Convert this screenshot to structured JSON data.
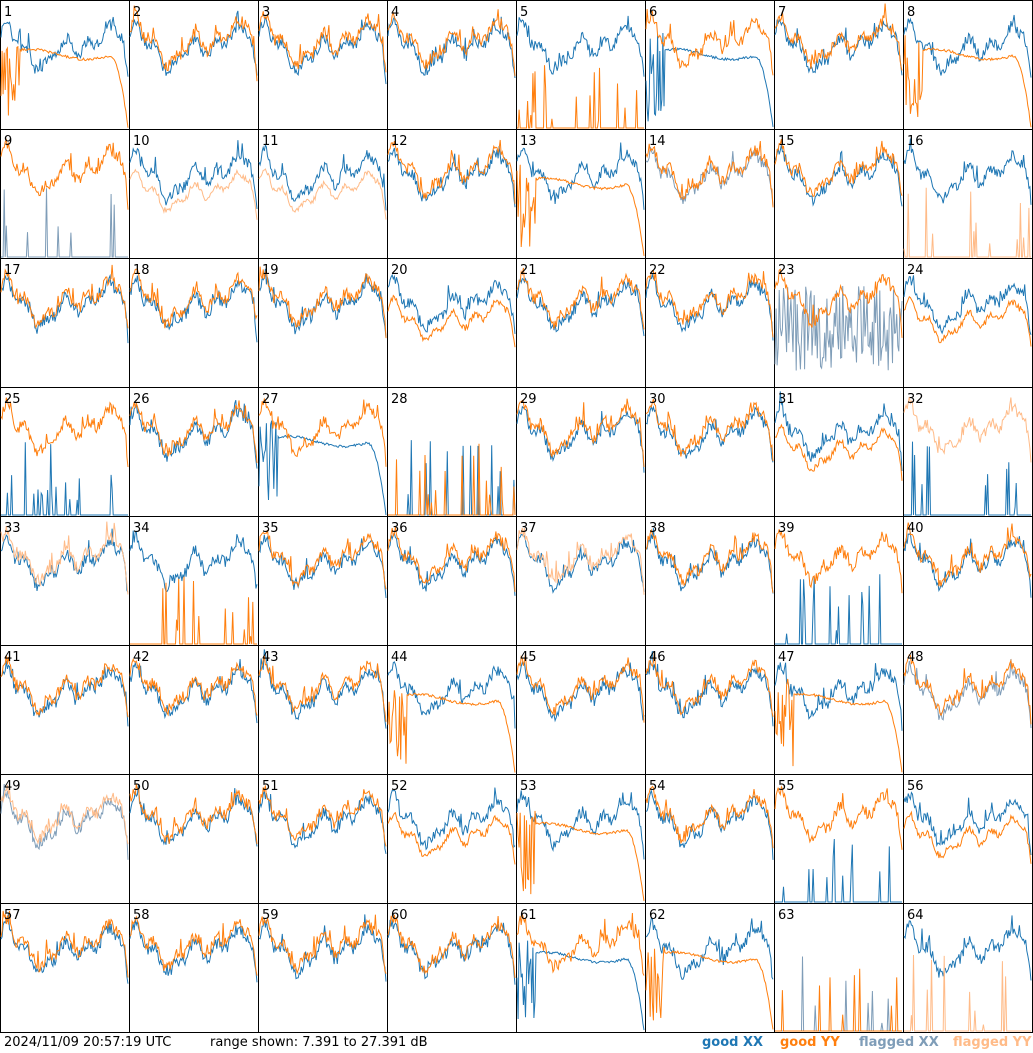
{
  "footer": {
    "timestamp": "2024/11/09 20:57:19 UTC",
    "range_text": "range shown: 7.391 to 27.391 dB",
    "legend": {
      "good_xx": "good XX",
      "good_yy": "good YY",
      "flagged_xx": "flagged XX",
      "flagged_yy": "flagged YY"
    }
  },
  "colors": {
    "good_xx": "#1f77b4",
    "good_yy": "#ff7f0e",
    "flagged_xx": "#7f9db8",
    "flagged_yy": "#ffbb88",
    "grid": "#000000",
    "background": "#ffffff"
  },
  "chart_data": {
    "type": "line",
    "layout": "8x8 grid of small multiples",
    "y_range_db": [
      7.391,
      27.391
    ],
    "x_ticks": "none",
    "y_ticks": "none",
    "grid": false,
    "legend_position": "bottom-right",
    "panels": [
      {
        "id": 1,
        "xx": "normal",
        "yy": "dropoff",
        "order": "yy"
      },
      {
        "id": 2,
        "xx": "normal",
        "yy": "normal"
      },
      {
        "id": 3,
        "xx": "normal",
        "yy": "normal"
      },
      {
        "id": 4,
        "xx": "normal",
        "yy": "normal"
      },
      {
        "id": 5,
        "xx": "normal",
        "yy": "spikes"
      },
      {
        "id": 6,
        "xx": "dropoff",
        "yy": "normal"
      },
      {
        "id": 7,
        "xx": "normal",
        "yy": "normal"
      },
      {
        "id": 8,
        "xx": "normal",
        "yy": "dropoff",
        "order": "yy"
      },
      {
        "id": 9,
        "xx": "spikes",
        "yy": "normal",
        "flagged": "xx"
      },
      {
        "id": 10,
        "xx": "normal",
        "yy": "low",
        "flagged": "yy"
      },
      {
        "id": 11,
        "xx": "normal",
        "yy": "low",
        "flagged": "yy"
      },
      {
        "id": 12,
        "xx": "normal",
        "yy": "normal"
      },
      {
        "id": 13,
        "xx": "normal",
        "yy": "dropoff",
        "order": "yy"
      },
      {
        "id": 14,
        "xx": "normal",
        "yy": "normal",
        "flagged": "xx"
      },
      {
        "id": 15,
        "xx": "normal",
        "yy": "normal"
      },
      {
        "id": 16,
        "xx": "normal",
        "yy": "spikes",
        "flagged": "yy"
      },
      {
        "id": 17,
        "xx": "normal",
        "yy": "normal"
      },
      {
        "id": 18,
        "xx": "normal",
        "yy": "normal"
      },
      {
        "id": 19,
        "xx": "normal",
        "yy": "normal"
      },
      {
        "id": 20,
        "xx": "normal",
        "yy": "low"
      },
      {
        "id": 21,
        "xx": "normal",
        "yy": "normal"
      },
      {
        "id": 22,
        "xx": "normal",
        "yy": "normal"
      },
      {
        "id": 23,
        "xx": "noise",
        "yy": "normal",
        "flagged": "xx"
      },
      {
        "id": 24,
        "xx": "normal",
        "yy": "low"
      },
      {
        "id": 25,
        "xx": "spikes",
        "yy": "normal",
        "order": "xx"
      },
      {
        "id": 26,
        "xx": "normal",
        "yy": "normal"
      },
      {
        "id": 27,
        "xx": "dropoff",
        "yy": "normal"
      },
      {
        "id": 28,
        "xx": "spikes",
        "yy": "spikes"
      },
      {
        "id": 29,
        "xx": "normal",
        "yy": "normal"
      },
      {
        "id": 30,
        "xx": "normal",
        "yy": "normal"
      },
      {
        "id": 31,
        "xx": "normal",
        "yy": "low"
      },
      {
        "id": 32,
        "xx": "spikes",
        "yy": "normal",
        "flagged": "yy"
      },
      {
        "id": 33,
        "xx": "normal",
        "yy": "normal",
        "flagged": "yy"
      },
      {
        "id": 34,
        "xx": "normal",
        "yy": "spikes"
      },
      {
        "id": 35,
        "xx": "normal",
        "yy": "normal"
      },
      {
        "id": 36,
        "xx": "normal",
        "yy": "normal"
      },
      {
        "id": 37,
        "xx": "normal",
        "yy": "normal",
        "flagged": "yy"
      },
      {
        "id": 38,
        "xx": "normal",
        "yy": "normal"
      },
      {
        "id": 39,
        "xx": "spikes",
        "yy": "normal"
      },
      {
        "id": 40,
        "xx": "normal",
        "yy": "normal"
      },
      {
        "id": 41,
        "xx": "normal",
        "yy": "normal"
      },
      {
        "id": 42,
        "xx": "normal",
        "yy": "normal"
      },
      {
        "id": 43,
        "xx": "normal",
        "yy": "normal"
      },
      {
        "id": 44,
        "xx": "normal",
        "yy": "dropoff",
        "order": "yy"
      },
      {
        "id": 45,
        "xx": "normal",
        "yy": "normal"
      },
      {
        "id": 46,
        "xx": "normal",
        "yy": "normal"
      },
      {
        "id": 47,
        "xx": "normal",
        "yy": "dropoff",
        "order": "yy"
      },
      {
        "id": 48,
        "xx": "normal",
        "yy": "normal",
        "flagged": "xx"
      },
      {
        "id": 49,
        "xx": "normal",
        "yy": "normal",
        "flagged": "both"
      },
      {
        "id": 50,
        "xx": "normal",
        "yy": "normal"
      },
      {
        "id": 51,
        "xx": "normal",
        "yy": "normal"
      },
      {
        "id": 52,
        "xx": "normal",
        "yy": "low"
      },
      {
        "id": 53,
        "xx": "normal",
        "yy": "dropoff",
        "order": "yy"
      },
      {
        "id": 54,
        "xx": "normal",
        "yy": "normal"
      },
      {
        "id": 55,
        "xx": "spikes",
        "yy": "normal"
      },
      {
        "id": 56,
        "xx": "normal",
        "yy": "low"
      },
      {
        "id": 57,
        "xx": "normal",
        "yy": "normal"
      },
      {
        "id": 58,
        "xx": "normal",
        "yy": "normal"
      },
      {
        "id": 59,
        "xx": "normal",
        "yy": "normal"
      },
      {
        "id": 60,
        "xx": "normal",
        "yy": "normal"
      },
      {
        "id": 61,
        "xx": "dropoff",
        "yy": "normal"
      },
      {
        "id": 62,
        "xx": "normal",
        "yy": "dropoff",
        "order": "yy"
      },
      {
        "id": 63,
        "xx": "spikes",
        "yy": "spikes",
        "flagged": "xx"
      },
      {
        "id": 64,
        "xx": "normal",
        "yy": "spikes",
        "flagged": "yy"
      }
    ]
  }
}
